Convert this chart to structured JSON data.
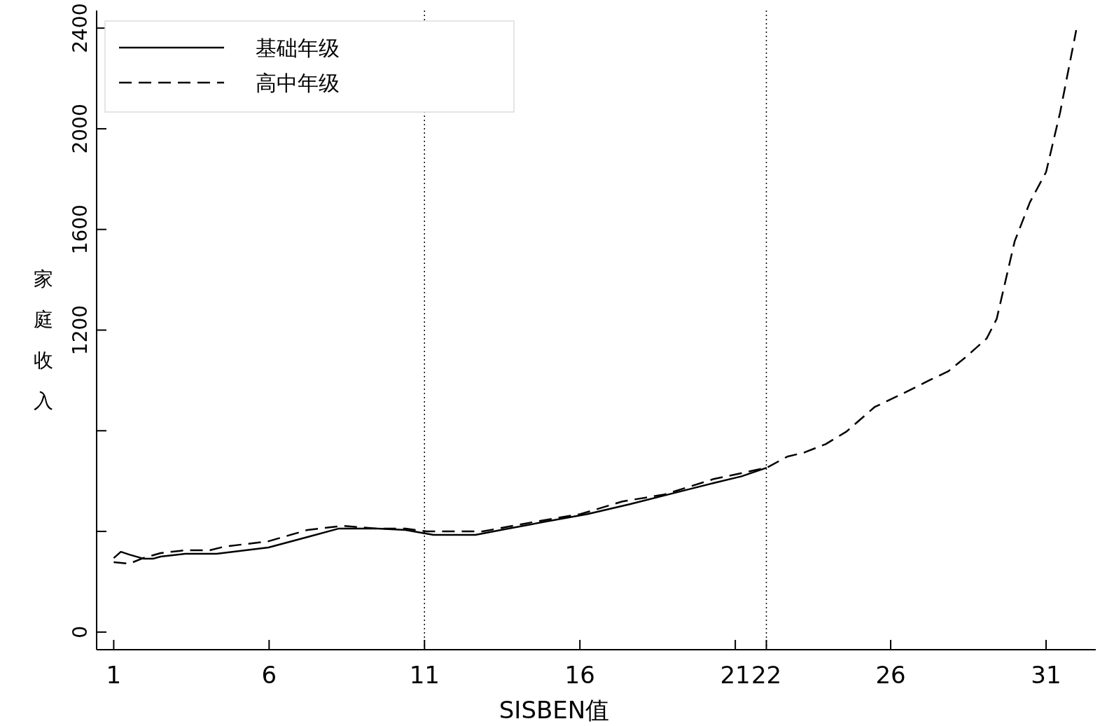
{
  "chart_data": {
    "type": "line",
    "xlabel": "SISBEN值",
    "ylabel": "家庭收入",
    "legend": "top left",
    "xlim": [
      0.45,
      32.6
    ],
    "xticks": [
      1,
      6,
      11,
      16,
      21,
      22,
      26,
      31
    ],
    "ylim": [
      -70,
      2470
    ],
    "yticks": [
      0,
      {
        "value": 400,
        "label": null
      },
      {
        "value": 800,
        "label": null
      },
      1200,
      1600,
      2000,
      2400
    ],
    "ref_lines": [
      {
        "axis": "x",
        "value": 11,
        "line_style": "dotted"
      },
      {
        "axis": "x",
        "value": 22,
        "line_style": "dotted"
      }
    ],
    "series": [
      {
        "name": "基础年级",
        "color": "#000000",
        "line_style": "solid",
        "x": [
          1,
          1.23,
          1.5,
          1.95,
          2.28,
          2.51,
          3.3,
          4.31,
          5.98,
          7.24,
          8.23,
          9.49,
          10.39,
          11.29,
          12.64,
          13.55,
          14.9,
          16.25,
          17.6,
          18.95,
          20.3,
          21.2,
          22.01
        ],
        "values": [
          294,
          319,
          308,
          292,
          292,
          300,
          311,
          311,
          336,
          378,
          411,
          411,
          406,
          386,
          386,
          408,
          439,
          469,
          508,
          550,
          592,
          619,
          653
        ]
      },
      {
        "name": "高中年级",
        "color": "#000000",
        "line_style": "dashed",
        "x": [
          1,
          1.5,
          1.95,
          2.51,
          3.3,
          4.09,
          4.54,
          5.98,
          7.24,
          8.36,
          9.49,
          10.39,
          11.07,
          12.87,
          14.45,
          16.02,
          17.37,
          18.73,
          20.3,
          22.01,
          22.67,
          23.23,
          23.91,
          24.58,
          25.48,
          26.38,
          27.28,
          27.85,
          28.41,
          29.09,
          29.41,
          29.99,
          30.48,
          31,
          31.45,
          31.97
        ],
        "values": [
          278,
          272,
          294,
          314,
          325,
          325,
          339,
          361,
          406,
          422,
          411,
          411,
          400,
          400,
          436,
          469,
          519,
          547,
          608,
          653,
          697,
          714,
          747,
          797,
          894,
          947,
          1003,
          1036,
          1092,
          1167,
          1244,
          1553,
          1708,
          1828,
          2064,
          2392
        ]
      }
    ]
  }
}
